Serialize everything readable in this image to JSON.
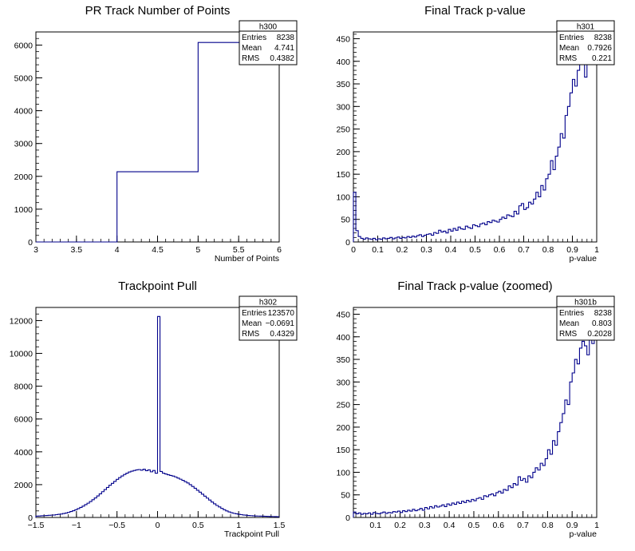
{
  "chart_data": [
    {
      "type": "histogram",
      "title": "PR Track Number of Points",
      "xlabel": "Number of Points",
      "ylabel": "",
      "xlim": [
        3,
        6
      ],
      "ylim": [
        0,
        6400
      ],
      "xticks": [
        "3",
        "3.5",
        "4",
        "4.5",
        "5",
        "5.5",
        "6"
      ],
      "yticks": [
        "0",
        "1000",
        "2000",
        "3000",
        "4000",
        "5000",
        "6000"
      ],
      "bins": [
        {
          "x0": 3,
          "x1": 4,
          "y": 0
        },
        {
          "x0": 4,
          "x1": 5,
          "y": 2140
        },
        {
          "x0": 5,
          "x1": 6,
          "y": 6080
        }
      ],
      "stats": {
        "name": "h300",
        "entries": "8238",
        "mean": "4.741",
        "rms": "0.4382"
      },
      "series_color": "#00008b"
    },
    {
      "type": "histogram",
      "title": "Final Track p-value",
      "xlabel": "p-value",
      "ylabel": "",
      "xlim": [
        0,
        1
      ],
      "ylim": [
        0,
        465
      ],
      "xticks": [
        "0",
        "0.1",
        "0.2",
        "0.3",
        "0.4",
        "0.5",
        "0.6",
        "0.7",
        "0.8",
        "0.9",
        "1"
      ],
      "yticks": [
        "0",
        "50",
        "100",
        "150",
        "200",
        "250",
        "300",
        "350",
        "400",
        "450"
      ],
      "bin_range": [
        0,
        1
      ],
      "values": [
        110,
        25,
        12,
        8,
        6,
        9,
        7,
        6,
        8,
        5,
        7,
        6,
        9,
        7,
        8,
        10,
        7,
        9,
        11,
        8,
        10,
        9,
        12,
        10,
        13,
        11,
        14,
        16,
        12,
        15,
        17,
        18,
        15,
        21,
        19,
        26,
        22,
        24,
        20,
        28,
        24,
        30,
        26,
        33,
        29,
        28,
        35,
        32,
        30,
        38,
        36,
        34,
        40,
        42,
        38,
        45,
        43,
        48,
        46,
        44,
        50,
        55,
        52,
        60,
        58,
        56,
        68,
        62,
        80,
        85,
        72,
        76,
        88,
        84,
        95,
        110,
        100,
        125,
        115,
        140,
        150,
        180,
        160,
        190,
        210,
        240,
        230,
        280,
        300,
        330,
        360,
        345,
        380,
        395,
        400,
        365,
        430,
        400,
        445,
        420
      ],
      "stats": {
        "name": "h301",
        "entries": "8238",
        "mean": "0.7926",
        "rms": "0.221"
      },
      "series_color": "#00008b"
    },
    {
      "type": "histogram",
      "title": "Trackpoint Pull",
      "xlabel": "Trackpoint Pull",
      "ylabel": "",
      "xlim": [
        -1.5,
        1.5
      ],
      "ylim": [
        0,
        12800
      ],
      "xticks": [
        "−1.5",
        "−1",
        "−0.5",
        "0",
        "0.5",
        "1",
        "1.5"
      ],
      "yticks": [
        "0",
        "2000",
        "4000",
        "6000",
        "8000",
        "10000",
        "12000"
      ],
      "bin_range": [
        -1.5,
        1.5
      ],
      "values": [
        80,
        90,
        100,
        110,
        120,
        130,
        140,
        150,
        170,
        190,
        210,
        240,
        270,
        310,
        360,
        410,
        470,
        540,
        610,
        690,
        780,
        870,
        970,
        1080,
        1190,
        1310,
        1440,
        1570,
        1700,
        1830,
        1960,
        2080,
        2200,
        2320,
        2430,
        2530,
        2620,
        2700,
        2770,
        2820,
        2860,
        2900,
        2920,
        2880,
        2940,
        2850,
        2900,
        2780,
        2860,
        2700,
        12250,
        2800,
        2700,
        2650,
        2600,
        2560,
        2520,
        2470,
        2400,
        2330,
        2260,
        2180,
        2100,
        2000,
        1890,
        1780,
        1660,
        1540,
        1420,
        1300,
        1180,
        1060,
        940,
        830,
        730,
        640,
        550,
        470,
        400,
        340,
        290,
        250,
        220,
        190,
        170,
        150,
        135,
        120,
        110,
        100,
        90,
        85,
        80,
        75,
        70,
        65,
        60,
        55,
        50,
        45
      ],
      "stats": {
        "name": "h302",
        "entries": "123570",
        "mean": "−0.0691",
        "rms": "0.4329"
      },
      "series_color": "#00008b"
    },
    {
      "type": "histogram",
      "title": "Final Track p-value (zoomed)",
      "xlabel": "p-value",
      "ylabel": "",
      "xlim": [
        0.01,
        1
      ],
      "ylim": [
        0,
        465
      ],
      "xticks": [
        "0.1",
        "0.2",
        "0.3",
        "0.4",
        "0.5",
        "0.6",
        "0.7",
        "0.8",
        "0.9",
        "1"
      ],
      "yticks": [
        "0",
        "50",
        "100",
        "150",
        "200",
        "250",
        "300",
        "350",
        "400",
        "450"
      ],
      "bin_range": [
        0.01,
        1
      ],
      "values": [
        12,
        8,
        10,
        7,
        9,
        8,
        10,
        7,
        11,
        9,
        8,
        10,
        12,
        9,
        11,
        10,
        13,
        12,
        14,
        11,
        15,
        13,
        16,
        14,
        18,
        15,
        17,
        20,
        16,
        22,
        19,
        24,
        21,
        26,
        23,
        25,
        28,
        24,
        30,
        27,
        32,
        29,
        34,
        31,
        36,
        33,
        38,
        35,
        40,
        37,
        42,
        44,
        40,
        48,
        46,
        50,
        52,
        48,
        55,
        58,
        54,
        62,
        60,
        70,
        66,
        75,
        72,
        90,
        82,
        86,
        78,
        92,
        88,
        100,
        110,
        105,
        120,
        115,
        130,
        150,
        140,
        170,
        160,
        190,
        210,
        230,
        260,
        250,
        300,
        320,
        350,
        340,
        375,
        390,
        380,
        360,
        400,
        385,
        440
      ],
      "stats": {
        "name": "h301b",
        "entries": "8238",
        "mean": "0.803",
        "rms": "0.2028"
      },
      "series_color": "#00008b"
    }
  ]
}
